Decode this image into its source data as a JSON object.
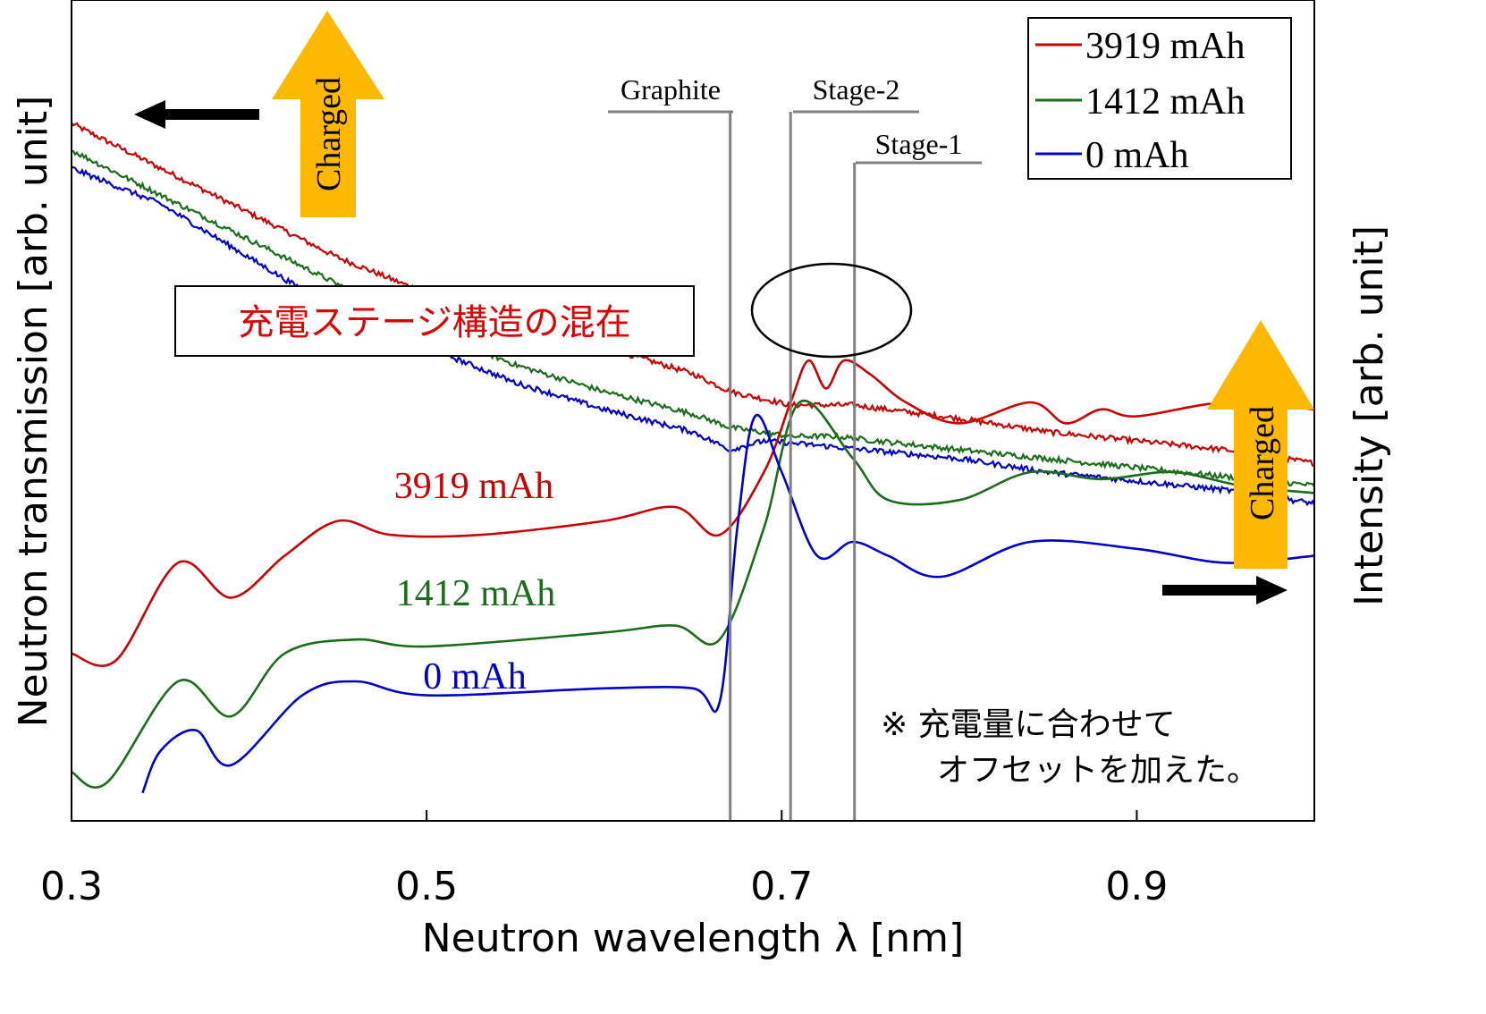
{
  "chart_data": {
    "type": "line",
    "xlabel": "Neutron wavelength λ [nm]",
    "ylabel_left": "Neutron transmission [arb. unit]",
    "ylabel_right": "Intensity [arb. unit]",
    "xlim": [
      0.3,
      1.0
    ],
    "xticks": [
      {
        "value": 0.3,
        "label": "0.3"
      },
      {
        "value": 0.5,
        "label": "0.5"
      },
      {
        "value": 0.7,
        "label": "0.7"
      },
      {
        "value": 0.9,
        "label": "0.9"
      }
    ],
    "legend": {
      "placement": "top-right",
      "entries": [
        {
          "label": "3919 mAh",
          "color": "#cc0000"
        },
        {
          "label": "1412 mAh",
          "color": "#1a6e1a"
        },
        {
          "label": "0 mAh",
          "color": "#0000cc"
        }
      ]
    },
    "grid": false,
    "reference_lines": [
      {
        "label": "Graphite",
        "x": 0.671
      },
      {
        "label": "Stage-2",
        "x": 0.705
      },
      {
        "label": "Stage-1",
        "x": 0.741
      }
    ],
    "transmission_series": [
      {
        "name": "3919 mAh",
        "color": "#cc0000",
        "points": [
          [
            0.3,
            1.08
          ],
          [
            0.35,
            1.03
          ],
          [
            0.4,
            0.98
          ],
          [
            0.45,
            0.93
          ],
          [
            0.5,
            0.89
          ],
          [
            0.55,
            0.86
          ],
          [
            0.6,
            0.83
          ],
          [
            0.65,
            0.8
          ],
          [
            0.671,
            0.78
          ],
          [
            0.705,
            0.765
          ],
          [
            0.74,
            0.765
          ],
          [
            0.8,
            0.75
          ],
          [
            0.85,
            0.735
          ],
          [
            0.9,
            0.725
          ],
          [
            0.95,
            0.715
          ],
          [
            1.0,
            0.7
          ]
        ]
      },
      {
        "name": "1412 mAh",
        "color": "#1a6e1a",
        "points": [
          [
            0.3,
            1.05
          ],
          [
            0.35,
            1.0
          ],
          [
            0.4,
            0.95
          ],
          [
            0.45,
            0.9
          ],
          [
            0.5,
            0.85
          ],
          [
            0.55,
            0.81
          ],
          [
            0.6,
            0.78
          ],
          [
            0.65,
            0.755
          ],
          [
            0.671,
            0.74
          ],
          [
            0.705,
            0.73
          ],
          [
            0.73,
            0.73
          ],
          [
            0.8,
            0.715
          ],
          [
            0.85,
            0.705
          ],
          [
            0.9,
            0.695
          ],
          [
            0.95,
            0.685
          ],
          [
            1.0,
            0.675
          ]
        ]
      },
      {
        "name": "0 mAh",
        "color": "#0000cc",
        "points": [
          [
            0.3,
            1.03
          ],
          [
            0.35,
            0.99
          ],
          [
            0.4,
            0.93
          ],
          [
            0.45,
            0.87
          ],
          [
            0.5,
            0.83
          ],
          [
            0.55,
            0.79
          ],
          [
            0.6,
            0.76
          ],
          [
            0.65,
            0.735
          ],
          [
            0.671,
            0.715
          ],
          [
            0.69,
            0.725
          ],
          [
            0.72,
            0.72
          ],
          [
            0.8,
            0.705
          ],
          [
            0.85,
            0.69
          ],
          [
            0.9,
            0.68
          ],
          [
            0.95,
            0.67
          ],
          [
            1.0,
            0.655
          ]
        ]
      }
    ],
    "intensity_series": [
      {
        "name": "3919 mAh",
        "color": "#cc0000",
        "points": [
          [
            0.3,
            0.24
          ],
          [
            0.325,
            0.23
          ],
          [
            0.36,
            0.37
          ],
          [
            0.39,
            0.32
          ],
          [
            0.42,
            0.38
          ],
          [
            0.45,
            0.43
          ],
          [
            0.48,
            0.41
          ],
          [
            0.53,
            0.41
          ],
          [
            0.6,
            0.43
          ],
          [
            0.64,
            0.45
          ],
          [
            0.665,
            0.41
          ],
          [
            0.69,
            0.5
          ],
          [
            0.705,
            0.6
          ],
          [
            0.715,
            0.66
          ],
          [
            0.725,
            0.62
          ],
          [
            0.735,
            0.66
          ],
          [
            0.75,
            0.64
          ],
          [
            0.77,
            0.6
          ],
          [
            0.8,
            0.57
          ],
          [
            0.84,
            0.6
          ],
          [
            0.86,
            0.57
          ],
          [
            0.88,
            0.59
          ],
          [
            0.9,
            0.58
          ],
          [
            0.95,
            0.6
          ],
          [
            1.0,
            0.59
          ]
        ]
      },
      {
        "name": "1412 mAh",
        "color": "#1a6e1a",
        "points": [
          [
            0.3,
            0.07
          ],
          [
            0.32,
            0.055
          ],
          [
            0.36,
            0.2
          ],
          [
            0.39,
            0.15
          ],
          [
            0.42,
            0.24
          ],
          [
            0.46,
            0.26
          ],
          [
            0.5,
            0.25
          ],
          [
            0.6,
            0.27
          ],
          [
            0.64,
            0.28
          ],
          [
            0.665,
            0.26
          ],
          [
            0.69,
            0.42
          ],
          [
            0.71,
            0.6
          ],
          [
            0.74,
            0.52
          ],
          [
            0.76,
            0.46
          ],
          [
            0.8,
            0.46
          ],
          [
            0.84,
            0.5
          ],
          [
            0.88,
            0.49
          ],
          [
            0.92,
            0.5
          ],
          [
            0.96,
            0.48
          ],
          [
            1.0,
            0.47
          ]
        ]
      },
      {
        "name": "0 mAh",
        "color": "#0000cc",
        "points": [
          [
            0.34,
            0.04
          ],
          [
            0.35,
            0.1
          ],
          [
            0.37,
            0.13
          ],
          [
            0.39,
            0.08
          ],
          [
            0.43,
            0.18
          ],
          [
            0.46,
            0.2
          ],
          [
            0.5,
            0.18
          ],
          [
            0.6,
            0.19
          ],
          [
            0.65,
            0.19
          ],
          [
            0.665,
            0.17
          ],
          [
            0.675,
            0.42
          ],
          [
            0.685,
            0.58
          ],
          [
            0.7,
            0.5
          ],
          [
            0.72,
            0.38
          ],
          [
            0.74,
            0.4
          ],
          [
            0.76,
            0.38
          ],
          [
            0.79,
            0.35
          ],
          [
            0.84,
            0.4
          ],
          [
            0.9,
            0.39
          ],
          [
            0.95,
            0.37
          ],
          [
            1.0,
            0.38
          ]
        ]
      }
    ],
    "series_labels": [
      {
        "name": "3919 mAh",
        "color": "#cc0000"
      },
      {
        "name": "1412 mAh",
        "color": "#1a6e1a"
      },
      {
        "name": "0 mAh",
        "color": "#0000cc"
      }
    ],
    "annotations": {
      "mixed_stage": "充電ステージ構造の混在",
      "note_line1": "※  充電量に合わせて",
      "note_line2": "オフセットを加えた。",
      "charged_label": "Charged",
      "charged_color": "#ffb800",
      "reference_line_color": "#808080"
    }
  }
}
